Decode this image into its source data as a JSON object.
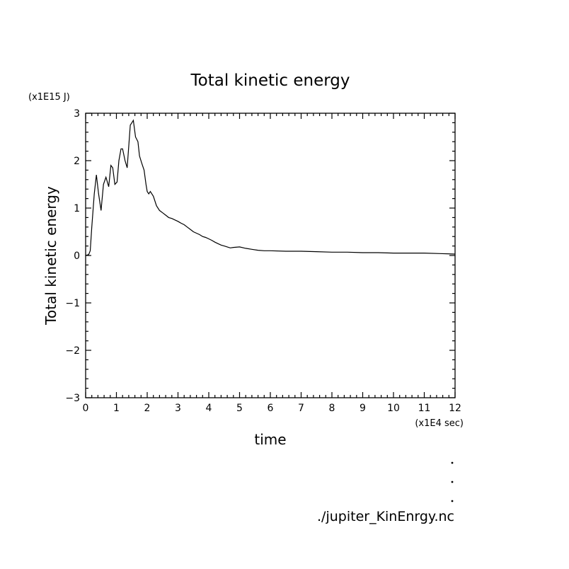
{
  "chart_data": {
    "type": "line",
    "title": "Total kinetic energy",
    "xlabel": "time",
    "ylabel": "Total kinetic energy",
    "x_unit": "(x1E4 sec)",
    "y_unit": "(x1E15 J)",
    "xlim": [
      0,
      12
    ],
    "ylim": [
      -3,
      3
    ],
    "xticks": [
      0,
      1,
      2,
      3,
      4,
      5,
      6,
      7,
      8,
      9,
      10,
      11,
      12
    ],
    "yticks": [
      -3,
      -2,
      -1,
      0,
      1,
      2,
      3
    ],
    "ytick_labels": [
      "−3",
      "−2",
      "−1",
      "0",
      "1",
      "2",
      "3"
    ],
    "grid": false,
    "series": [
      {
        "x": [
          0,
          0.1,
          0.15,
          0.2,
          0.28,
          0.35,
          0.42,
          0.5,
          0.58,
          0.66,
          0.75,
          0.82,
          0.88,
          0.95,
          1.02,
          1.08,
          1.15,
          1.2,
          1.28,
          1.35,
          1.4,
          1.45,
          1.5,
          1.55,
          1.62,
          1.7,
          1.75,
          1.82,
          1.9,
          1.96,
          2.0,
          2.05,
          2.1,
          2.2,
          2.3,
          2.4,
          2.5,
          2.6,
          2.7,
          2.8,
          2.9,
          3.0,
          3.1,
          3.2,
          3.3,
          3.4,
          3.5,
          3.6,
          3.7,
          3.8,
          3.9,
          4.0,
          4.1,
          4.2,
          4.3,
          4.4,
          4.5,
          4.6,
          4.7,
          4.8,
          5.0,
          5.2,
          5.4,
          5.6,
          5.8,
          6.0,
          6.5,
          7.0,
          7.5,
          8.0,
          8.5,
          9.0,
          9.5,
          10.0,
          10.5,
          11.0,
          11.5,
          12.0
        ],
        "y": [
          0.0,
          0.02,
          0.1,
          0.6,
          1.3,
          1.7,
          1.3,
          0.95,
          1.5,
          1.65,
          1.45,
          1.9,
          1.85,
          1.5,
          1.55,
          2.0,
          2.25,
          2.25,
          2.0,
          1.85,
          2.3,
          2.75,
          2.8,
          2.85,
          2.5,
          2.4,
          2.1,
          1.95,
          1.8,
          1.5,
          1.35,
          1.3,
          1.35,
          1.25,
          1.05,
          0.95,
          0.9,
          0.85,
          0.8,
          0.78,
          0.75,
          0.72,
          0.68,
          0.65,
          0.6,
          0.55,
          0.5,
          0.47,
          0.44,
          0.4,
          0.38,
          0.35,
          0.32,
          0.28,
          0.25,
          0.22,
          0.2,
          0.18,
          0.16,
          0.17,
          0.18,
          0.15,
          0.13,
          0.11,
          0.1,
          0.1,
          0.09,
          0.09,
          0.08,
          0.07,
          0.07,
          0.06,
          0.06,
          0.05,
          0.05,
          0.05,
          0.04,
          0.03
        ]
      }
    ],
    "source_file": "./jupiter_KinEnrgy.nc"
  }
}
